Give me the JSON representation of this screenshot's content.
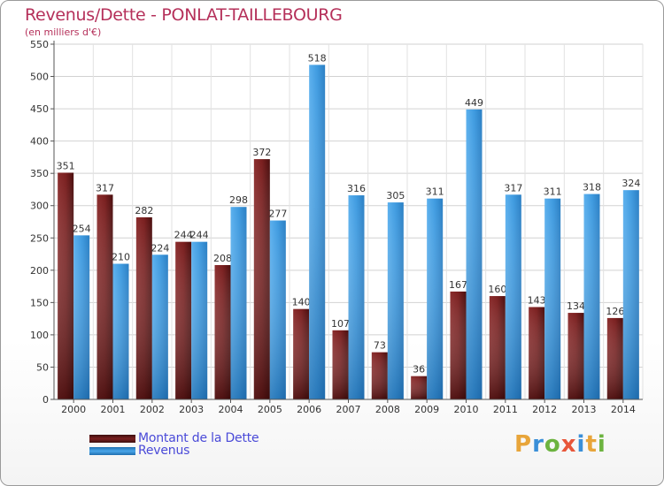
{
  "chart_data": {
    "type": "bar",
    "title": "Revenus/Dette - PONLAT-TAILLEBOURG",
    "subtitle": "(en milliers d'€)",
    "categories": [
      "2000",
      "2001",
      "2002",
      "2003",
      "2004",
      "2005",
      "2006",
      "2007",
      "2008",
      "2009",
      "2010",
      "2011",
      "2012",
      "2013",
      "2014"
    ],
    "series": [
      {
        "name": "Montant de la Dette",
        "color": "#7a1f1f",
        "values": [
          351,
          317,
          282,
          244,
          208,
          372,
          140,
          107,
          73,
          36,
          167,
          160,
          143,
          134,
          126
        ]
      },
      {
        "name": "Revenus",
        "color": "#3f9be0",
        "values": [
          254,
          210,
          224,
          244,
          298,
          277,
          518,
          316,
          305,
          311,
          449,
          317,
          311,
          318,
          324
        ]
      }
    ],
    "ylim": [
      0,
      550
    ],
    "yticks": [
      0,
      50,
      100,
      150,
      200,
      250,
      300,
      350,
      400,
      450,
      500,
      550
    ],
    "grid": true,
    "legend_position": "bottom-left"
  },
  "logo": {
    "text": "Proxiti"
  }
}
